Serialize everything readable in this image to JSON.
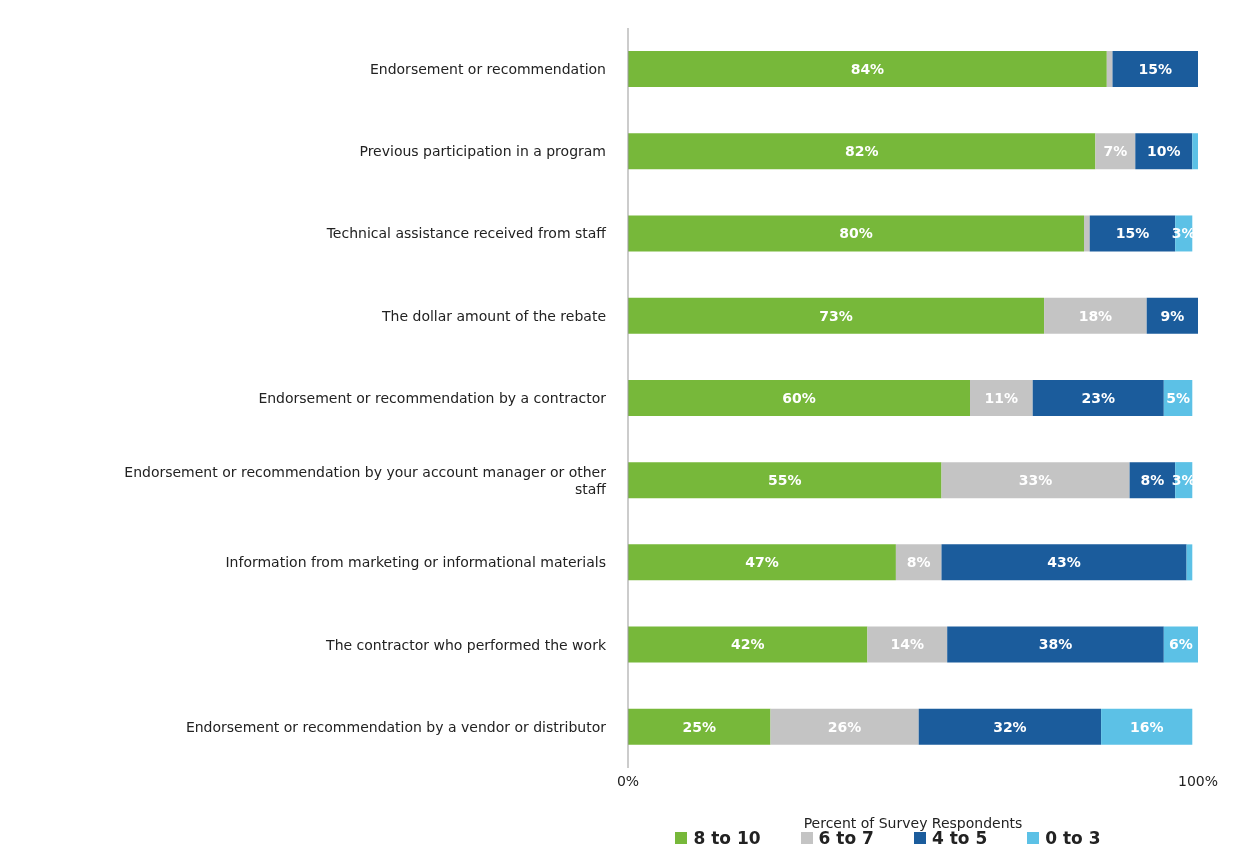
{
  "chart_data": {
    "type": "bar",
    "orientation": "horizontal",
    "stacked": true,
    "xlabel": "Percent of Survey Respondents",
    "categories": [
      "Endorsement or recommendation",
      "Previous participation in a program",
      "Technical assistance received from staff",
      "The dollar amount of the rebate",
      "Endorsement or recommendation by a contractor",
      "Endorsement or recommendation by your account manager or other staff",
      "Information from marketing or informational materials",
      "The contractor who performed the work",
      "Endorsement or recommendation by a vendor or distributor"
    ],
    "series": [
      {
        "name": "8 to 10",
        "color": "#77b83a",
        "values": [
          84,
          82,
          80,
          73,
          60,
          55,
          47,
          42,
          25
        ],
        "value_labels": [
          "84%",
          "82%",
          "80%",
          "73%",
          "60%",
          "55%",
          "47%",
          "42%",
          "25%"
        ]
      },
      {
        "name": "6 to 7",
        "color": "#c4c4c4",
        "values": [
          1,
          7,
          1,
          18,
          11,
          33,
          8,
          14,
          26
        ],
        "value_labels": [
          null,
          "7%",
          null,
          "18%",
          "11%",
          "33%",
          "8%",
          "14%",
          "26%"
        ]
      },
      {
        "name": "4 to 5",
        "color": "#1b5c9c",
        "values": [
          15,
          10,
          15,
          9,
          23,
          8,
          43,
          38,
          32
        ],
        "value_labels": [
          "15%",
          "10%",
          "15%",
          "9%",
          "23%",
          "8%",
          "43%",
          "38%",
          "32%"
        ]
      },
      {
        "name": "0 to 3",
        "color": "#5cc1e6",
        "values": [
          0,
          1,
          3,
          0,
          5,
          3,
          1,
          6,
          16
        ],
        "value_labels": [
          null,
          null,
          "3%",
          null,
          "5%",
          "3%",
          null,
          "6%",
          "16%"
        ]
      }
    ],
    "xlim": [
      0,
      100
    ],
    "xticks": [
      {
        "value": 0,
        "label": "0%"
      },
      {
        "value": 100,
        "label": "100%"
      }
    ],
    "grid": false,
    "legend": "bottom"
  }
}
